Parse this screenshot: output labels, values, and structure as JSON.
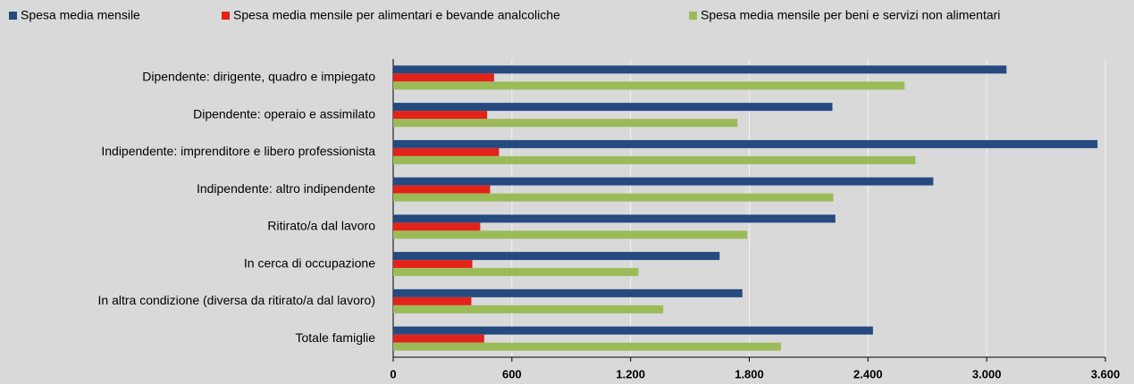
{
  "chart_data": {
    "type": "bar",
    "orientation": "horizontal",
    "categories": [
      "Dipendente: dirigente, quadro e impiegato",
      "Dipendente: operaio e assimilato",
      "Indipendente: imprenditore e libero professionista",
      "Indipendente: altro indipendente",
      "Ritirato/a dal lavoro",
      "In cerca di occupazione",
      "In altra condizione (diversa da ritirato/a dal lavoro)",
      "Totale famiglie"
    ],
    "series": [
      {
        "name": "Spesa media mensile",
        "color": "#244a7f",
        "values": [
          3100,
          2220,
          3560,
          2730,
          2235,
          1650,
          1765,
          2425
        ]
      },
      {
        "name": "Spesa media mensile per alimentari e bevande analcoliche",
        "color": "#e2231a",
        "values": [
          510,
          475,
          535,
          490,
          440,
          400,
          395,
          460
        ]
      },
      {
        "name": "Spesa media mensile per beni e servizi non alimentari",
        "color": "#9bbb59",
        "values": [
          2585,
          1740,
          2640,
          2225,
          1790,
          1240,
          1365,
          1960
        ]
      }
    ],
    "xlim": [
      0,
      3600
    ],
    "xticks": [
      0,
      600,
      {
        "value": 1200,
        "label": "1.200"
      },
      {
        "value": 1800,
        "label": "1.800"
      },
      {
        "value": 2400,
        "label": "2.400"
      },
      {
        "value": 3000,
        "label": "3.000"
      },
      {
        "value": 3600,
        "label": "3.600"
      }
    ],
    "grid": true,
    "legend": "top"
  }
}
